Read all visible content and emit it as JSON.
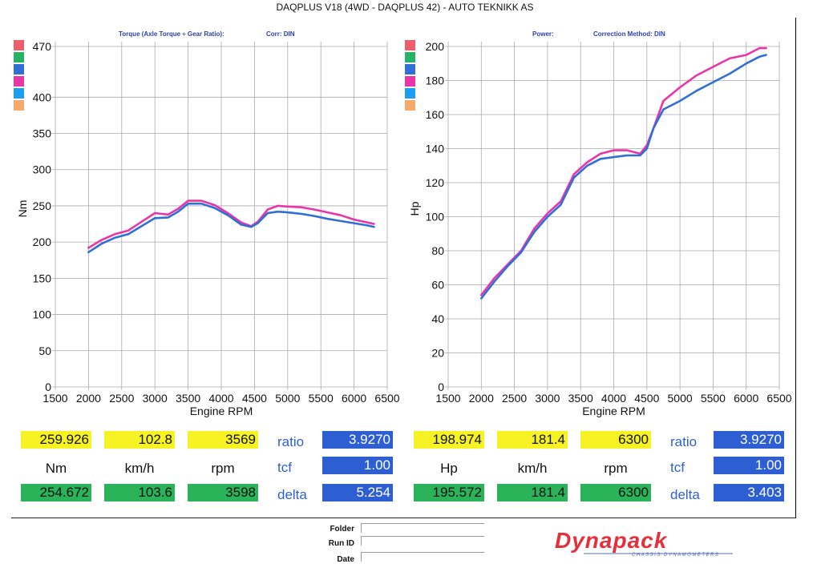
{
  "header": {
    "title": "DAQPLUS V18 (4WD - DAQPLUS 42) - AUTO TEKNIKK AS",
    "left_sub": "Torque (Axle Torque ÷ Gear Ratio):",
    "left_corr": "Corr: DIN",
    "right_sub": "Power:",
    "right_corr": "Correction Method: DIN"
  },
  "legend_colors": [
    "#ef5d6d",
    "#27b266",
    "#2f6fd6",
    "#e836a8",
    "#1e9ef0",
    "#f5a96a"
  ],
  "chart_data": [
    {
      "type": "line",
      "xlabel": "Engine RPM",
      "ylabel": "Nm",
      "xlim": [
        1500,
        6500
      ],
      "ylim": [
        0,
        470
      ],
      "xticks": [
        1500,
        2000,
        2500,
        3000,
        3500,
        4000,
        4500,
        5000,
        5500,
        6000,
        6500
      ],
      "yticks": [
        0,
        50,
        100,
        150,
        200,
        250,
        300,
        350,
        400,
        470
      ],
      "grid": true,
      "series": [
        {
          "color": "#e836a8",
          "points": [
            [
              2000,
              192
            ],
            [
              2200,
              203
            ],
            [
              2400,
              211
            ],
            [
              2600,
              216
            ],
            [
              2800,
              228
            ],
            [
              3000,
              240
            ],
            [
              3200,
              238
            ],
            [
              3350,
              246
            ],
            [
              3500,
              257
            ],
            [
              3700,
              257
            ],
            [
              3900,
              251
            ],
            [
              4100,
              240
            ],
            [
              4300,
              227
            ],
            [
              4450,
              222
            ],
            [
              4550,
              228
            ],
            [
              4700,
              245
            ],
            [
              4850,
              250
            ],
            [
              5000,
              249
            ],
            [
              5200,
              248
            ],
            [
              5400,
              245
            ],
            [
              5600,
              241
            ],
            [
              5800,
              237
            ],
            [
              6000,
              231
            ],
            [
              6200,
              227
            ],
            [
              6300,
              225
            ]
          ]
        },
        {
          "color": "#2f6fd6",
          "points": [
            [
              2000,
              186
            ],
            [
              2200,
              198
            ],
            [
              2400,
              206
            ],
            [
              2600,
              211
            ],
            [
              2800,
              222
            ],
            [
              3000,
              233
            ],
            [
              3200,
              234
            ],
            [
              3350,
              242
            ],
            [
              3500,
              253
            ],
            [
              3700,
              253
            ],
            [
              3900,
              247
            ],
            [
              4100,
              237
            ],
            [
              4300,
              224
            ],
            [
              4450,
              221
            ],
            [
              4550,
              226
            ],
            [
              4700,
              240
            ],
            [
              4850,
              242
            ],
            [
              5000,
              241
            ],
            [
              5200,
              239
            ],
            [
              5400,
              236
            ],
            [
              5600,
              232
            ],
            [
              5800,
              229
            ],
            [
              6000,
              226
            ],
            [
              6200,
              223
            ],
            [
              6300,
              221
            ]
          ]
        }
      ]
    },
    {
      "type": "line",
      "xlabel": "Engine RPM",
      "ylabel": "Hp",
      "xlim": [
        1500,
        6500
      ],
      "ylim": [
        0,
        200
      ],
      "xticks": [
        1500,
        2000,
        2500,
        3000,
        3500,
        4000,
        4500,
        5000,
        5500,
        6000,
        6500
      ],
      "yticks": [
        0,
        20,
        40,
        60,
        80,
        100,
        120,
        140,
        160,
        180,
        200
      ],
      "grid": true,
      "series": [
        {
          "color": "#e836a8",
          "points": [
            [
              2000,
              54
            ],
            [
              2200,
              64
            ],
            [
              2400,
              72
            ],
            [
              2600,
              80
            ],
            [
              2800,
              93
            ],
            [
              3000,
              102
            ],
            [
              3200,
              109
            ],
            [
              3400,
              125
            ],
            [
              3600,
              132
            ],
            [
              3800,
              137
            ],
            [
              4000,
              139
            ],
            [
              4200,
              139
            ],
            [
              4400,
              137
            ],
            [
              4500,
              142
            ],
            [
              4600,
              152
            ],
            [
              4750,
              168
            ],
            [
              5000,
              176
            ],
            [
              5250,
              183
            ],
            [
              5500,
              188
            ],
            [
              5750,
              193
            ],
            [
              6000,
              195
            ],
            [
              6200,
              199
            ],
            [
              6300,
              199
            ]
          ]
        },
        {
          "color": "#2f6fd6",
          "points": [
            [
              2000,
              52
            ],
            [
              2200,
              62
            ],
            [
              2400,
              71
            ],
            [
              2600,
              79
            ],
            [
              2800,
              91
            ],
            [
              3000,
              100
            ],
            [
              3200,
              107
            ],
            [
              3400,
              123
            ],
            [
              3600,
              130
            ],
            [
              3800,
              134
            ],
            [
              4000,
              135
            ],
            [
              4200,
              136
            ],
            [
              4400,
              136
            ],
            [
              4500,
              140
            ],
            [
              4600,
              152
            ],
            [
              4750,
              163
            ],
            [
              5000,
              168
            ],
            [
              5250,
              174
            ],
            [
              5500,
              179
            ],
            [
              5750,
              184
            ],
            [
              6000,
              190
            ],
            [
              6200,
              194
            ],
            [
              6300,
              195
            ]
          ]
        }
      ]
    }
  ],
  "readouts_left": {
    "row1": [
      "259.926",
      "102.8",
      "3569"
    ],
    "units": [
      "Nm",
      "km/h",
      "rpm"
    ],
    "row2": [
      "254.672",
      "103.6",
      "3598"
    ],
    "labels": [
      "ratio",
      "tcf",
      "delta"
    ],
    "values": [
      "3.9270",
      "1.00",
      "5.254"
    ]
  },
  "readouts_right": {
    "row1": [
      "198.974",
      "181.4",
      "6300"
    ],
    "units": [
      "Hp",
      "km/h",
      "rpm"
    ],
    "row2": [
      "195.572",
      "181.4",
      "6300"
    ],
    "labels": [
      "ratio",
      "tcf",
      "delta"
    ],
    "values": [
      "3.9270",
      "1.00",
      "3.403"
    ]
  },
  "footer": {
    "folder_label": "Folder",
    "run_id_label": "Run ID",
    "date_label": "Date",
    "logo_text": "Dynapack",
    "logo_tagline": "CHASSIS DYNAMOMETERS"
  }
}
